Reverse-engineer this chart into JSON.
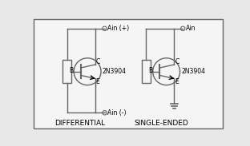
{
  "bg_color": "#e8e8e8",
  "panel_bg": "#f5f5f5",
  "line_color": "#666666",
  "text_color": "#000000",
  "label_left": "DIFFERENTIAL",
  "label_right": "SINGLE-ENDED",
  "transistor_label": "2N3904",
  "ain_plus": "Ain (+)",
  "ain_minus": "Ain (-)",
  "ain_right": "Ain",
  "node_B": "B",
  "node_C": "C",
  "node_E": "E"
}
